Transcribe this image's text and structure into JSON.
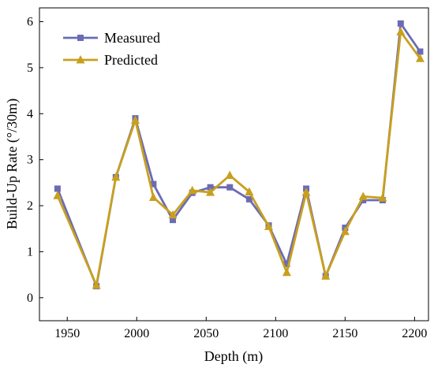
{
  "chart_data": {
    "type": "line",
    "xlabel": "Depth (m)",
    "ylabel": "Build-Up Rate (°/30m)",
    "xlim": [
      1930,
      2210
    ],
    "ylim": [
      -0.5,
      6.3
    ],
    "xticks": [
      1950,
      2000,
      2050,
      2100,
      2150,
      2200
    ],
    "yticks": [
      0,
      1,
      2,
      3,
      4,
      5,
      6
    ],
    "grid": false,
    "legend": "top-left",
    "x": [
      1943,
      1971,
      1985,
      1999,
      2012,
      2026,
      2040,
      2053,
      2067,
      2081,
      2095,
      2108,
      2122,
      2136,
      2150,
      2163,
      2177,
      2190,
      2204
    ],
    "series": [
      {
        "name": "Measured",
        "color": "#6b6bb5",
        "marker": "square",
        "values": [
          2.37,
          0.25,
          2.62,
          3.9,
          2.47,
          1.69,
          2.28,
          2.4,
          2.4,
          2.14,
          1.57,
          0.73,
          2.37,
          0.47,
          1.52,
          2.12,
          2.12,
          5.96,
          5.35
        ]
      },
      {
        "name": "Predicted",
        "color": "#c8a01e",
        "marker": "triangle",
        "values": [
          2.22,
          0.27,
          2.62,
          3.86,
          2.18,
          1.8,
          2.33,
          2.29,
          2.66,
          2.3,
          1.55,
          0.55,
          2.29,
          0.47,
          1.44,
          2.2,
          2.17,
          5.78,
          5.2
        ]
      }
    ]
  }
}
